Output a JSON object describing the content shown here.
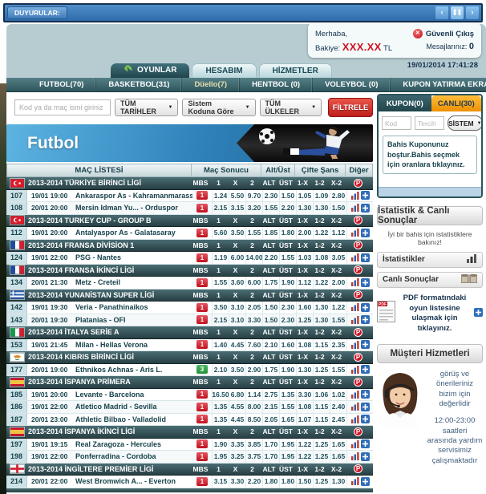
{
  "announcement": {
    "label": "DUYURULAR:",
    "prev_glyph": "‹",
    "pause_glyph": "❚❚",
    "next_glyph": "›"
  },
  "header": {
    "greeting": "Merhaba,",
    "balance_label": "Bakiye:",
    "balance_value": "XXX.XX",
    "balance_currency": "TL",
    "logout_label": "Güvenli Çıkış",
    "messages_label": "Mesajlarınız:",
    "messages_count": "0",
    "datetime": "19/01/2014 17:41:28"
  },
  "main_tabs": [
    {
      "label": "OYUNLAR",
      "active": true,
      "icon": "games-wing-icon"
    },
    {
      "label": "HESABIM",
      "active": false
    },
    {
      "label": "HİZMETLER",
      "active": false
    }
  ],
  "nav_items": [
    {
      "label": "FUTBOL(70)",
      "style": "normal"
    },
    {
      "label": "BASKETBOL(31)",
      "style": "normal"
    },
    {
      "label": "Düello(7)",
      "style": "gold"
    },
    {
      "label": "HENTBOL (0)",
      "style": "normal"
    },
    {
      "label": "VOLEYBOL (0)",
      "style": "normal"
    },
    {
      "label": "KUPON YATIRMA EKRANI",
      "style": "normal"
    }
  ],
  "filters": {
    "search_placeholder": "Kod ya da maç ismi giriniz",
    "dates_dropdown": "TÜM TARİHLER",
    "system_dropdown": "Sistem Koduna Göre",
    "countries_dropdown": "TÜM ÜLKELER",
    "filter_button": "FİLTRELE"
  },
  "banner": {
    "title": "Futbol"
  },
  "table": {
    "headers": {
      "list": "MAÇ LİSTESİ",
      "result": "Maç Sonucu",
      "overunder": "Alt/Üst",
      "doublechance": "Çifte Şans",
      "other": "Diğer"
    },
    "league_columns": [
      "MBS",
      "1",
      "X",
      "2",
      "ALT",
      "ÜST",
      "1-X",
      "1-2",
      "X-2"
    ],
    "groups": [
      {
        "league": "2013-2014 TÜRKİYE BİRİNCİ LİGİ",
        "flag": "tr",
        "matches": [
          {
            "code": "107",
            "date": "19/01 19:00",
            "teams": "Ankaraspor As - Kahramanmarassp...",
            "mbs": "1",
            "mbs_color": "red",
            "odds": [
              "1.24",
              "5.50",
              "9.70",
              "2.30",
              "1.50",
              "1.05",
              "1.09",
              "2.80"
            ]
          },
          {
            "code": "108",
            "date": "20/01 20:00",
            "teams": "Mersin Idman Yu... - Orduspor",
            "mbs": "1",
            "mbs_color": "red",
            "odds": [
              "2.15",
              "3.15",
              "3.20",
              "1.55",
              "2.20",
              "1.30",
              "1.30",
              "1.50"
            ]
          }
        ]
      },
      {
        "league": "2013-2014 TURKEY CUP - GROUP B",
        "flag": "tr",
        "matches": [
          {
            "code": "112",
            "date": "19/01 20:00",
            "teams": "Antalyaspor As - Galatasaray",
            "mbs": "1",
            "mbs_color": "red",
            "odds": [
              "5.60",
              "3.50",
              "1.55",
              "1.85",
              "1.80",
              "2.00",
              "1.22",
              "1.12"
            ]
          }
        ]
      },
      {
        "league": "2013-2014 FRANSA DİVİSİON 1",
        "flag": "fr",
        "matches": [
          {
            "code": "124",
            "date": "19/01 22:00",
            "teams": "PSG - Nantes",
            "mbs": "1",
            "mbs_color": "red",
            "odds": [
              "1.19",
              "6.00",
              "14.00",
              "2.20",
              "1.55",
              "1.03",
              "1.08",
              "3.05"
            ]
          }
        ]
      },
      {
        "league": "2013-2014 FRANSA İKİNCİ LİGİ",
        "flag": "fr",
        "matches": [
          {
            "code": "134",
            "date": "20/01 21:30",
            "teams": "Metz - Creteil",
            "mbs": "1",
            "mbs_color": "red",
            "odds": [
              "1.55",
              "3.60",
              "6.00",
              "1.75",
              "1.90",
              "1.12",
              "1.22",
              "2.00"
            ]
          }
        ]
      },
      {
        "league": "2013-2014 YUNANİSTAN SUPER LİGİ",
        "flag": "gr",
        "matches": [
          {
            "code": "142",
            "date": "19/01 19:30",
            "teams": "Veria - Panathinaikos",
            "mbs": "1",
            "mbs_color": "red",
            "odds": [
              "3.50",
              "3.10",
              "2.05",
              "1.50",
              "2.30",
              "1.60",
              "1.30",
              "1.22"
            ]
          },
          {
            "code": "143",
            "date": "20/01 19:30",
            "teams": "Platanias - OFI",
            "mbs": "1",
            "mbs_color": "red",
            "odds": [
              "2.15",
              "3.10",
              "3.30",
              "1.50",
              "2.30",
              "1.25",
              "1.30",
              "1.55"
            ]
          }
        ]
      },
      {
        "league": "2013-2014 İTALYA SERİE A",
        "flag": "it",
        "matches": [
          {
            "code": "153",
            "date": "19/01 21:45",
            "teams": "Milan - Hellas Verona",
            "mbs": "1",
            "mbs_color": "red",
            "odds": [
              "1.40",
              "4.45",
              "7.60",
              "2.10",
              "1.60",
              "1.08",
              "1.15",
              "2.35"
            ]
          }
        ]
      },
      {
        "league": "2013-2014 KIBRIS BİRİNCİ LİGİ",
        "flag": "cy",
        "matches": [
          {
            "code": "177",
            "date": "20/01 19:00",
            "teams": "Ethnikos Achnas - Aris L.",
            "mbs": "3",
            "mbs_color": "green",
            "odds": [
              "2.10",
              "3.50",
              "2.90",
              "1.75",
              "1.90",
              "1.30",
              "1.25",
              "1.55"
            ]
          }
        ]
      },
      {
        "league": "2013-2014 İSPANYA PRİMERA",
        "flag": "es",
        "matches": [
          {
            "code": "185",
            "date": "19/01 20:00",
            "teams": "Levante - Barcelona",
            "mbs": "1",
            "mbs_color": "red",
            "odds": [
              "16.50",
              "6.80",
              "1.14",
              "2.75",
              "1.35",
              "3.30",
              "1.06",
              "1.02"
            ]
          },
          {
            "code": "186",
            "date": "19/01 22:00",
            "teams": "Atletico Madrid - Sevilla",
            "mbs": "1",
            "mbs_color": "red",
            "odds": [
              "1.35",
              "4.55",
              "8.00",
              "2.15",
              "1.55",
              "1.08",
              "1.15",
              "2.40"
            ]
          },
          {
            "code": "187",
            "date": "20/01 23:00",
            "teams": "Athletic Bilbao - Valladolid",
            "mbs": "1",
            "mbs_color": "red",
            "odds": [
              "1.35",
              "4.45",
              "8.50",
              "2.05",
              "1.65",
              "1.07",
              "1.15",
              "2.45"
            ]
          }
        ]
      },
      {
        "league": "2013-2014 İSPANYA İKİNCİ LİGİ",
        "flag": "es",
        "matches": [
          {
            "code": "197",
            "date": "19/01 19:15",
            "teams": "Real Zaragoza - Hercules",
            "mbs": "1",
            "mbs_color": "red",
            "odds": [
              "1.90",
              "3.35",
              "3.85",
              "1.70",
              "1.95",
              "1.22",
              "1.25",
              "1.65"
            ]
          },
          {
            "code": "198",
            "date": "19/01 22:00",
            "teams": "Ponferradina - Cordoba",
            "mbs": "1",
            "mbs_color": "red",
            "odds": [
              "1.95",
              "3.25",
              "3.75",
              "1.70",
              "1.95",
              "1.22",
              "1.25",
              "1.65"
            ]
          }
        ]
      },
      {
        "league": "2013-2014 İNGİLTERE PREMİER LİGİ",
        "flag": "en",
        "matches": [
          {
            "code": "214",
            "date": "20/01 22:00",
            "teams": "West Bromwich A... - Everton",
            "mbs": "1",
            "mbs_color": "red",
            "odds": [
              "3.15",
              "3.30",
              "2.20",
              "1.80",
              "1.80",
              "1.50",
              "1.25",
              "1.30"
            ]
          }
        ]
      }
    ]
  },
  "coupon": {
    "kupon_tab": "KUPON(0)",
    "canli_tab": "CANLI(30)",
    "kod_placeholder": "Kod",
    "tercih_placeholder": "Tercih",
    "system_label": "SİSTEM",
    "empty_message": "Bahis Kuponunuz boştur.Bahis seçmek için oranlara tıklayınız."
  },
  "stats": {
    "title": "İstatistik & Canlı Sonuçlar",
    "hint": "İyi bir bahis için istatistiklere bakınız!",
    "stat_button": "İstatistikler",
    "live_button": "Canlı Sonuçlar",
    "pdf_text": "PDF formatındaki oyun listesine ulaşmak için tıklayınız."
  },
  "support": {
    "title": "Müşteri Hizmetleri",
    "message1": "görüş ve önerileriniz bizim için değerlidir",
    "message2": "12:00-23:00 saatleri arasında yardım servisimiz çalışmaktadır"
  },
  "colors": {
    "accent_red": "#c0121f",
    "accent_orange": "#f5a623",
    "teal_dark": "#2b545c",
    "mbs_green": "#23903a",
    "link_blue": "#2f6db8"
  }
}
